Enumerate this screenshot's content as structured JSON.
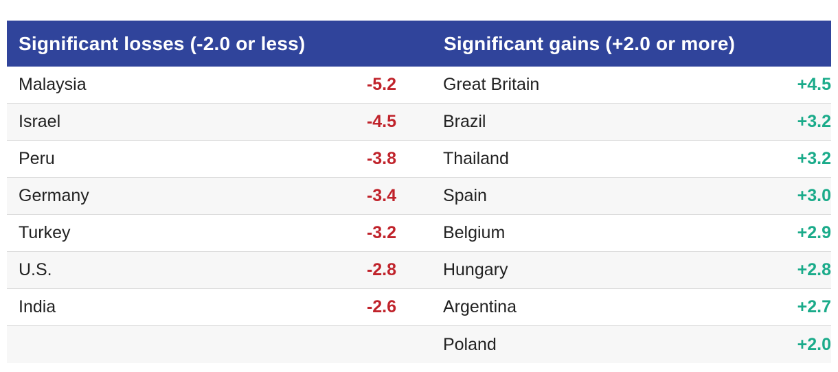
{
  "headers": {
    "losses": "Significant losses (-2.0 or less)",
    "gains": "Significant gains (+2.0 or more)"
  },
  "colors": {
    "header_bg": "#30449b",
    "loss": "#c0232b",
    "gain": "#1aab8a"
  },
  "rows": [
    {
      "loss_country": "Malaysia",
      "loss_value": "-5.2",
      "gain_country": "Great Britain",
      "gain_value": "+4.5"
    },
    {
      "loss_country": "Israel",
      "loss_value": "-4.5",
      "gain_country": "Brazil",
      "gain_value": "+3.2"
    },
    {
      "loss_country": "Peru",
      "loss_value": "-3.8",
      "gain_country": "Thailand",
      "gain_value": "+3.2"
    },
    {
      "loss_country": "Germany",
      "loss_value": "-3.4",
      "gain_country": "Spain",
      "gain_value": "+3.0"
    },
    {
      "loss_country": "Turkey",
      "loss_value": "-3.2",
      "gain_country": "Belgium",
      "gain_value": "+2.9"
    },
    {
      "loss_country": "U.S.",
      "loss_value": "-2.8",
      "gain_country": "Hungary",
      "gain_value": "+2.8"
    },
    {
      "loss_country": "India",
      "loss_value": "-2.6",
      "gain_country": "Argentina",
      "gain_value": "+2.7"
    },
    {
      "loss_country": "",
      "loss_value": "",
      "gain_country": "Poland",
      "gain_value": "+2.0"
    }
  ]
}
